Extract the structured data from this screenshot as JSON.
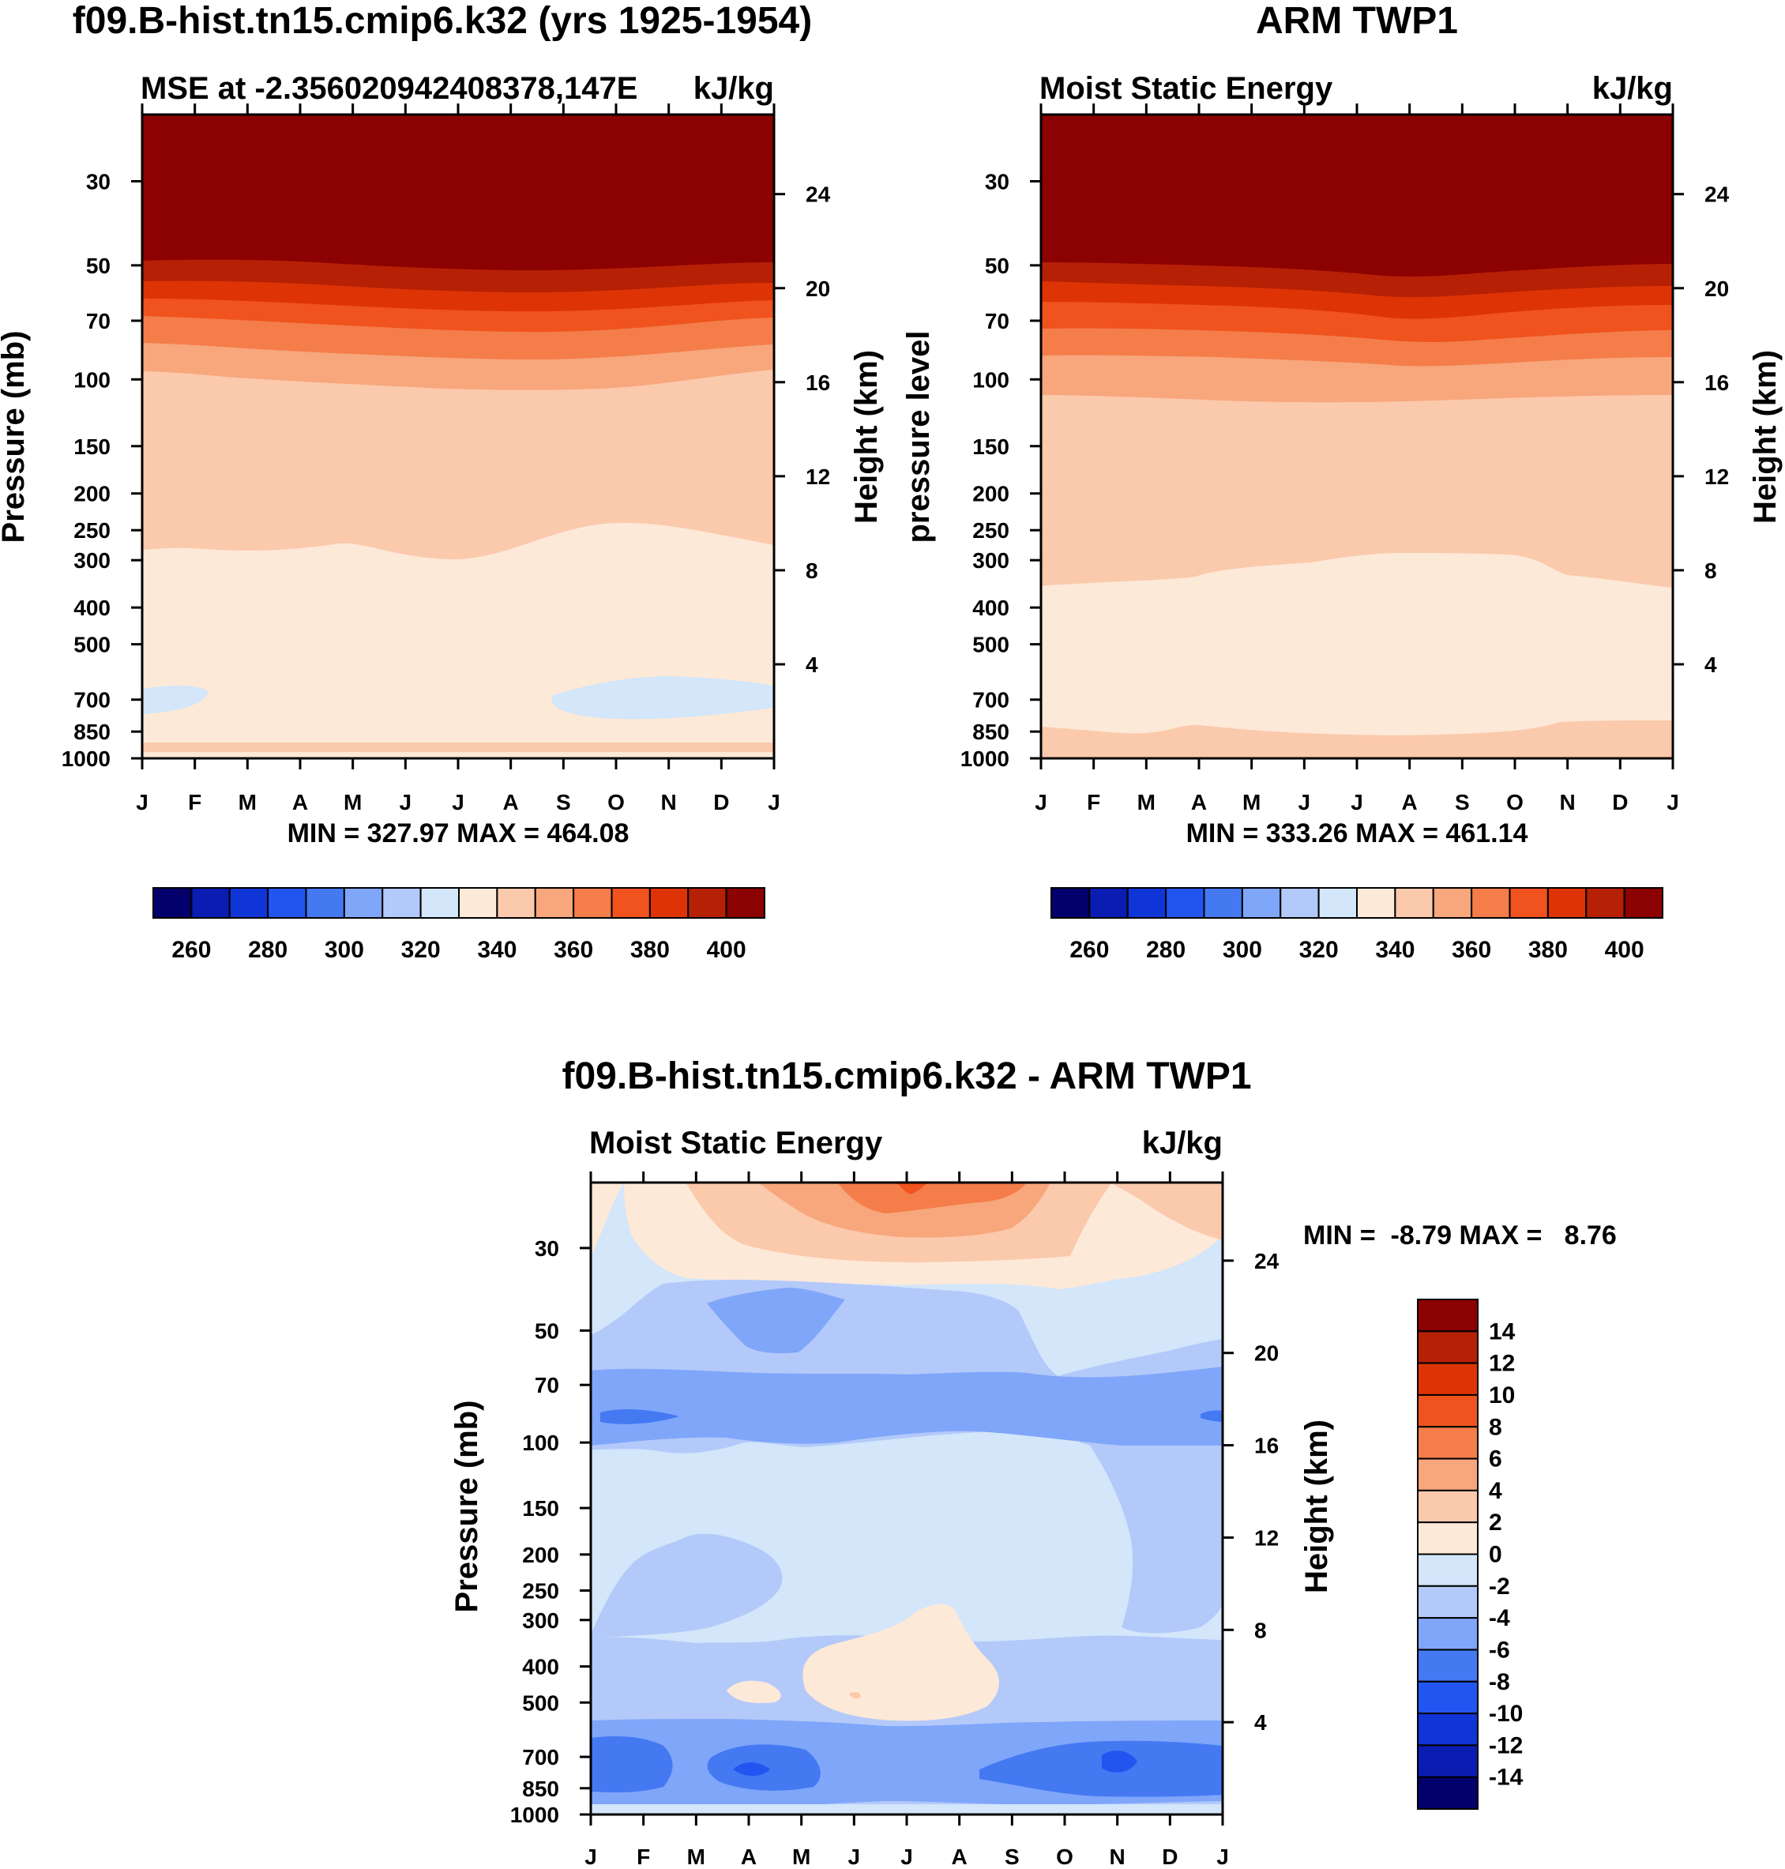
{
  "palette": {
    "cold": [
      "#04006b",
      "#0a1cb1",
      "#0f35d6",
      "#2255f0",
      "#4479f2",
      "#7fa6f9",
      "#b3c9fa",
      "#d3e6fa"
    ],
    "warm": [
      "#fde9d8",
      "#fbc9ac",
      "#f8a67c",
      "#f47d4a",
      "#f0531e",
      "#de3405",
      "#b62005",
      "#8c0101"
    ]
  },
  "months": [
    "J",
    "F",
    "M",
    "A",
    "M",
    "J",
    "J",
    "A",
    "S",
    "O",
    "N",
    "D",
    "J"
  ],
  "chart_data": [
    {
      "type": "contour",
      "title": "f09.B-hist.tn15.cmip6.k32 (yrs 1925-1954)",
      "left_string": "MSE at -2.356020942408378,147E",
      "right_string": "kJ/kg",
      "ylabel": "Pressure (mb)",
      "ylabel_right": "Height (km)",
      "xlabel_ticks": [
        "J",
        "F",
        "M",
        "A",
        "M",
        "J",
        "J",
        "A",
        "S",
        "O",
        "N",
        "D",
        "J"
      ],
      "y_ticks": [
        "30",
        "50",
        "70",
        "100",
        "150",
        "200",
        "250",
        "300",
        "400",
        "500",
        "700",
        "850",
        "1000"
      ],
      "y_ticks_right": [
        "24",
        "20",
        "16",
        "12",
        "8",
        "4"
      ],
      "min_max": "MIN = 327.97 MAX = 464.08",
      "contour_levels": [
        260,
        270,
        280,
        290,
        300,
        310,
        320,
        330,
        340,
        350,
        360,
        370,
        380,
        390,
        400
      ],
      "colorbar_labels": [
        "260",
        "280",
        "300",
        "320",
        "340",
        "360",
        "380",
        "400"
      ]
    },
    {
      "type": "contour",
      "title": "ARM TWP1",
      "left_string": "Moist Static Energy",
      "right_string": "kJ/kg",
      "ylabel": "pressure level",
      "ylabel_right": "Height (km)",
      "xlabel_ticks": [
        "J",
        "F",
        "M",
        "A",
        "M",
        "J",
        "J",
        "A",
        "S",
        "O",
        "N",
        "D",
        "J"
      ],
      "y_ticks": [
        "30",
        "50",
        "70",
        "100",
        "150",
        "200",
        "250",
        "300",
        "400",
        "500",
        "700",
        "850",
        "1000"
      ],
      "y_ticks_right": [
        "24",
        "20",
        "16",
        "12",
        "8",
        "4"
      ],
      "min_max": "MIN = 333.26 MAX = 461.14",
      "contour_levels": [
        260,
        270,
        280,
        290,
        300,
        310,
        320,
        330,
        340,
        350,
        360,
        370,
        380,
        390,
        400
      ],
      "colorbar_labels": [
        "260",
        "280",
        "300",
        "320",
        "340",
        "360",
        "380",
        "400"
      ]
    },
    {
      "type": "contour",
      "title": "f09.B-hist.tn15.cmip6.k32 - ARM TWP1",
      "left_string": "Moist Static Energy",
      "right_string": "kJ/kg",
      "ylabel": "Pressure (mb)",
      "ylabel_right": "Height (km)",
      "xlabel_ticks": [
        "J",
        "F",
        "M",
        "A",
        "M",
        "J",
        "J",
        "A",
        "S",
        "O",
        "N",
        "D",
        "J"
      ],
      "y_ticks": [
        "30",
        "50",
        "70",
        "100",
        "150",
        "200",
        "250",
        "300",
        "400",
        "500",
        "700",
        "850",
        "1000"
      ],
      "y_ticks_right": [
        "24",
        "20",
        "16",
        "12",
        "8",
        "4"
      ],
      "min_max": "MIN =  -8.79 MAX =   8.76",
      "contour_levels": [
        -14,
        -12,
        -10,
        -8,
        -6,
        -4,
        -2,
        0,
        2,
        4,
        6,
        8,
        10,
        12,
        14
      ],
      "colorbar_labels": [
        "14",
        "12",
        "10",
        "8",
        "6",
        "4",
        "2",
        "0",
        "-2",
        "-4",
        "-6",
        "-8",
        "-10",
        "-12",
        "-14"
      ]
    }
  ]
}
